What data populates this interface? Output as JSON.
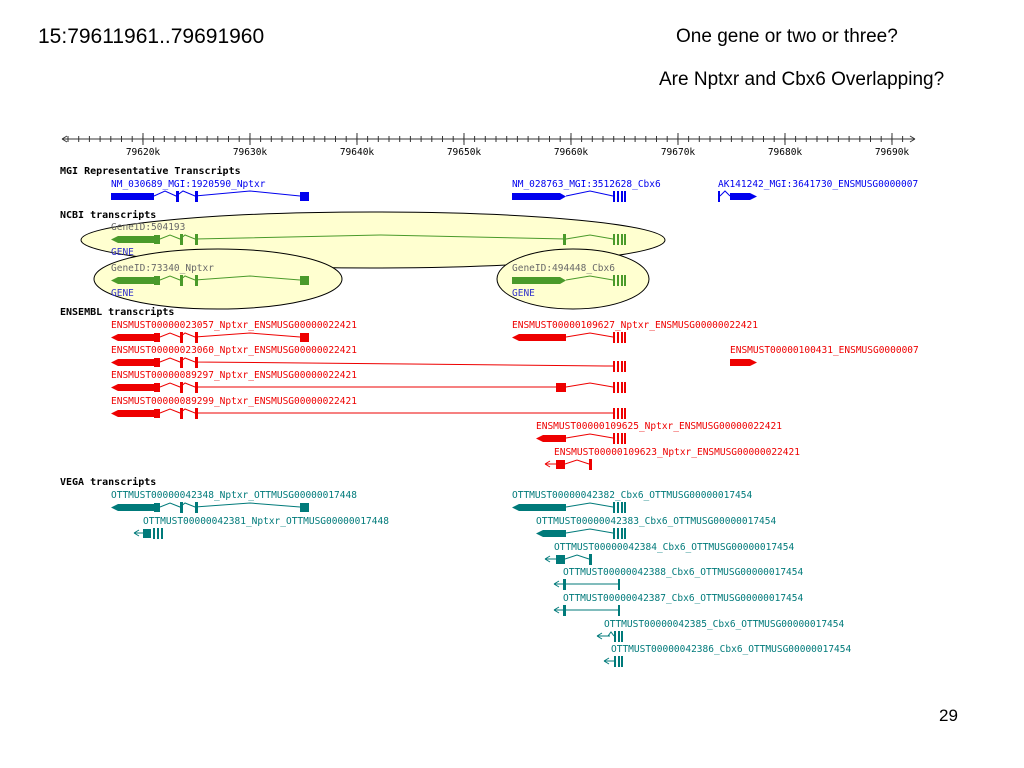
{
  "slide": {
    "title": "15:79611961..79691960",
    "questions": [
      "One gene or two or three?",
      "Are Nptxr and Cbx6 Overlapping?"
    ],
    "page_number": "29"
  },
  "ruler": {
    "ticks": [
      "79620k",
      "79630k",
      "79640k",
      "79650k",
      "79660k",
      "79670k",
      "79680k",
      "79690k"
    ]
  },
  "tracks": [
    {
      "name": "MGI Representative Transcripts",
      "color": "#0000ee",
      "features": [
        {
          "label": "NM_030689_MGI:1920590_Nptxr"
        },
        {
          "label": "NM_028763_MGI:3512628_Cbx6"
        },
        {
          "label": "AK141242_MGI:3641730_ENSMUSG0000007"
        }
      ]
    },
    {
      "name": "NCBI transcripts",
      "color": "#4a9a2a",
      "features": [
        {
          "label": "GeneID:504193",
          "link": "GENE"
        },
        {
          "label": "GeneID:73340_Nptxr",
          "link": "GENE"
        },
        {
          "label": "GeneID:494448_Cbx6",
          "link": "GENE"
        }
      ]
    },
    {
      "name": "ENSEMBL transcripts",
      "color": "#ee0000",
      "features": [
        {
          "label": "ENSMUST00000023057_Nptxr_ENSMUSG00000022421"
        },
        {
          "label": "ENSMUST00000109627_Nptxr_ENSMUSG00000022421"
        },
        {
          "label": "ENSMUST00000023060_Nptxr_ENSMUSG00000022421"
        },
        {
          "label": "ENSMUST00000100431_ENSMUSG0000007"
        },
        {
          "label": "ENSMUST00000089297_Nptxr_ENSMUSG00000022421"
        },
        {
          "label": "ENSMUST00000089299_Nptxr_ENSMUSG00000022421"
        },
        {
          "label": "ENSMUST00000109625_Nptxr_ENSMUSG00000022421"
        },
        {
          "label": "ENSMUST00000109623_Nptxr_ENSMUSG00000022421"
        }
      ]
    },
    {
      "name": "VEGA transcripts",
      "color": "#007a7a",
      "features": [
        {
          "label": "OTTMUST00000042348_Nptxr_OTTMUSG00000017448"
        },
        {
          "label": "OTTMUST00000042382_Cbx6_OTTMUSG00000017454"
        },
        {
          "label": "OTTMUST00000042381_Nptxr_OTTMUSG00000017448"
        },
        {
          "label": "OTTMUST00000042383_Cbx6_OTTMUSG00000017454"
        },
        {
          "label": "OTTMUST00000042384_Cbx6_OTTMUSG00000017454"
        },
        {
          "label": "OTTMUST00000042388_Cbx6_OTTMUSG00000017454"
        },
        {
          "label": "OTTMUST00000042387_Cbx6_OTTMUSG00000017454"
        },
        {
          "label": "OTTMUST00000042385_Cbx6_OTTMUSG00000017454"
        },
        {
          "label": "OTTMUST00000042386_Cbx6_OTTMUSG00000017454"
        }
      ]
    }
  ]
}
